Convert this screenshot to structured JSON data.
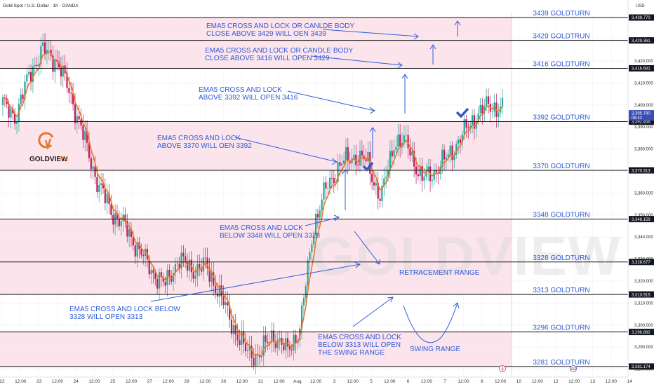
{
  "header": {
    "symbol_line": "Gold Spot / U.S. Dollar · 1h · OANDA",
    "currency": "USD"
  },
  "brand": {
    "logo_text_main": "GOLDVIEW",
    "logo_text_sub": "FX",
    "watermark": "GOLDVIEW",
    "accent": "#e8762b"
  },
  "colors": {
    "zone_fill": "#fce4ec",
    "level_line": "#111111",
    "annotation": "#2f5bd8",
    "badge_bg": "#131722",
    "last_price_bg": "#3a4db5",
    "grid": "#eeeeee",
    "candle_up": "#26a69a",
    "candle_down": "#c2185b",
    "ema": "#e8762b",
    "check": "#3a56c4"
  },
  "chart_data": {
    "type": "candlestick",
    "title": "Gold Spot / U.S. Dollar · 1h · OANDA",
    "ylim": [
      3277,
      3442
    ],
    "y_ticks": [
      {
        "value": 3280,
        "label": "3,280.000"
      },
      {
        "value": 3290,
        "label": "3,290.000"
      },
      {
        "value": 3300,
        "label": "3,300.000"
      },
      {
        "value": 3310,
        "label": "3,310.000"
      },
      {
        "value": 3320,
        "label": "3,320.000"
      },
      {
        "value": 3330,
        "label": "3,330.000"
      },
      {
        "value": 3340,
        "label": "3,340.000"
      },
      {
        "value": 3350,
        "label": "3,350.000"
      },
      {
        "value": 3360,
        "label": "3,360.000"
      },
      {
        "value": 3370,
        "label": "3,370.000"
      },
      {
        "value": 3380,
        "label": "3,380.000"
      },
      {
        "value": 3390,
        "label": "3,390.000"
      },
      {
        "value": 3400,
        "label": "3,400.000"
      },
      {
        "value": 3410,
        "label": "3,410.000"
      },
      {
        "value": 3420,
        "label": "3,420.000"
      },
      {
        "value": 3430,
        "label": "3,430.000"
      }
    ],
    "x_ticks": [
      "22",
      "12:00",
      "23",
      "12:00",
      "24",
      "12:00",
      "25",
      "12:00",
      "27",
      "12:00",
      "29",
      "12:00",
      "30",
      "12:00",
      "31",
      "12:00",
      "Aug",
      "12:00",
      "3",
      "12:00",
      "5",
      "12:00",
      "6",
      "12:00",
      "7",
      "12:00",
      "8",
      "12:00",
      "10",
      "12:00",
      "12",
      "12:00",
      "13",
      "12:00",
      "14"
    ],
    "last_price": {
      "value": 3395.79,
      "label": "3,395.790",
      "sub": "06:42"
    },
    "level_badges": [
      {
        "value": 3439.77,
        "label": "3,439.770"
      },
      {
        "value": 3429.361,
        "label": "3,429.361"
      },
      {
        "value": 3416.681,
        "label": "3,416.681"
      },
      {
        "value": 3392.456,
        "label": "3,392.456"
      },
      {
        "value": 3370.313,
        "label": "3,370.313"
      },
      {
        "value": 3348.159,
        "label": "3,348.159"
      },
      {
        "value": 3328.677,
        "label": "3,328.677"
      },
      {
        "value": 3313.915,
        "label": "3,313.915"
      },
      {
        "value": 3296.882,
        "label": "3,296.882"
      },
      {
        "value": 3281.174,
        "label": "3,281.174"
      }
    ],
    "levels": [
      {
        "value": 3439.77,
        "label": "3439 GOLDTURN"
      },
      {
        "value": 3429.361,
        "label": "3429 GOLDTRUN"
      },
      {
        "value": 3416.681,
        "label": "3416 GOLDTURN"
      },
      {
        "value": 3392.456,
        "label": "3392 GOLDTURN"
      },
      {
        "value": 3370.313,
        "label": "3370 GOLDTURN"
      },
      {
        "value": 3348.159,
        "label": "3348 GOLDTURN"
      },
      {
        "value": 3328.677,
        "label": "3328 GOLDTURN"
      },
      {
        "value": 3313.915,
        "label": "3313 GOLDTURN"
      },
      {
        "value": 3296.882,
        "label": "3296 GOLDTURN"
      },
      {
        "value": 3281.174,
        "label": "3281 GOLDTURN"
      }
    ],
    "annotations": [
      {
        "lines": [
          "EMA5 CROSS AND LOCK OR CANLDE BODY",
          "CLOSE ABOVE 3429 WILL OEN 3439"
        ]
      },
      {
        "lines": [
          "EMA5 CROSS AND LOCK OR CANDLE BODY",
          "CLOSE ABOVE 3416 WILL OPEN 3429"
        ]
      },
      {
        "lines": [
          "EMA5 CROSS AND LOCK",
          "ABOVE 3392 WILL OPEN 3416"
        ]
      },
      {
        "lines": [
          "EMA5 CROSS AND LOCK",
          "ABOVE 3370 WILL OEN 3392"
        ]
      },
      {
        "lines": [
          "EMA5 CROSS AND LOCK",
          "BELOW 3348 WILL OPEN 3328"
        ]
      },
      {
        "lines": [
          "RETRACEMENT RANGE"
        ]
      },
      {
        "lines": [
          "EMA5 CROSS AND LOCK BELOW",
          "3328 WILL OPEN 3313"
        ]
      },
      {
        "lines": [
          "EMA5 CROSS AND LOCK",
          "BELOW 3313 WILL OPEN",
          "THE SWING RANGE"
        ]
      },
      {
        "lines": [
          "SWING RANGE"
        ]
      }
    ],
    "price_path": [
      [
        3400,
        3388
      ],
      [
        3395,
        3385
      ],
      [
        3415,
        3430
      ],
      [
        3425,
        3430
      ],
      [
        3420,
        3427
      ],
      [
        3405,
        3390
      ],
      [
        3385,
        3375
      ],
      [
        3365,
        3360
      ],
      [
        3352,
        3355
      ],
      [
        3345,
        3348
      ],
      [
        3335,
        3330
      ],
      [
        3325,
        3315
      ],
      [
        3318,
        3333
      ],
      [
        3330,
        3322
      ],
      [
        3325,
        3330
      ],
      [
        3327,
        3318
      ],
      [
        3315,
        3305
      ],
      [
        3300,
        3290
      ],
      [
        3288,
        3282
      ],
      [
        3286,
        3300
      ],
      [
        3296,
        3290
      ],
      [
        3288,
        3295
      ],
      [
        3298,
        3320
      ],
      [
        3345,
        3360
      ],
      [
        3363,
        3362
      ],
      [
        3373,
        3368
      ],
      [
        3377,
        3372
      ],
      [
        3374,
        3365
      ],
      [
        3357,
        3370
      ],
      [
        3384,
        3386
      ],
      [
        3382,
        3375
      ],
      [
        3366,
        3363
      ],
      [
        3370,
        3378
      ],
      [
        3377,
        3370
      ],
      [
        3386,
        3392
      ],
      [
        3395,
        3385
      ],
      [
        3400,
        3393
      ],
      [
        3398,
        3397
      ]
    ]
  }
}
